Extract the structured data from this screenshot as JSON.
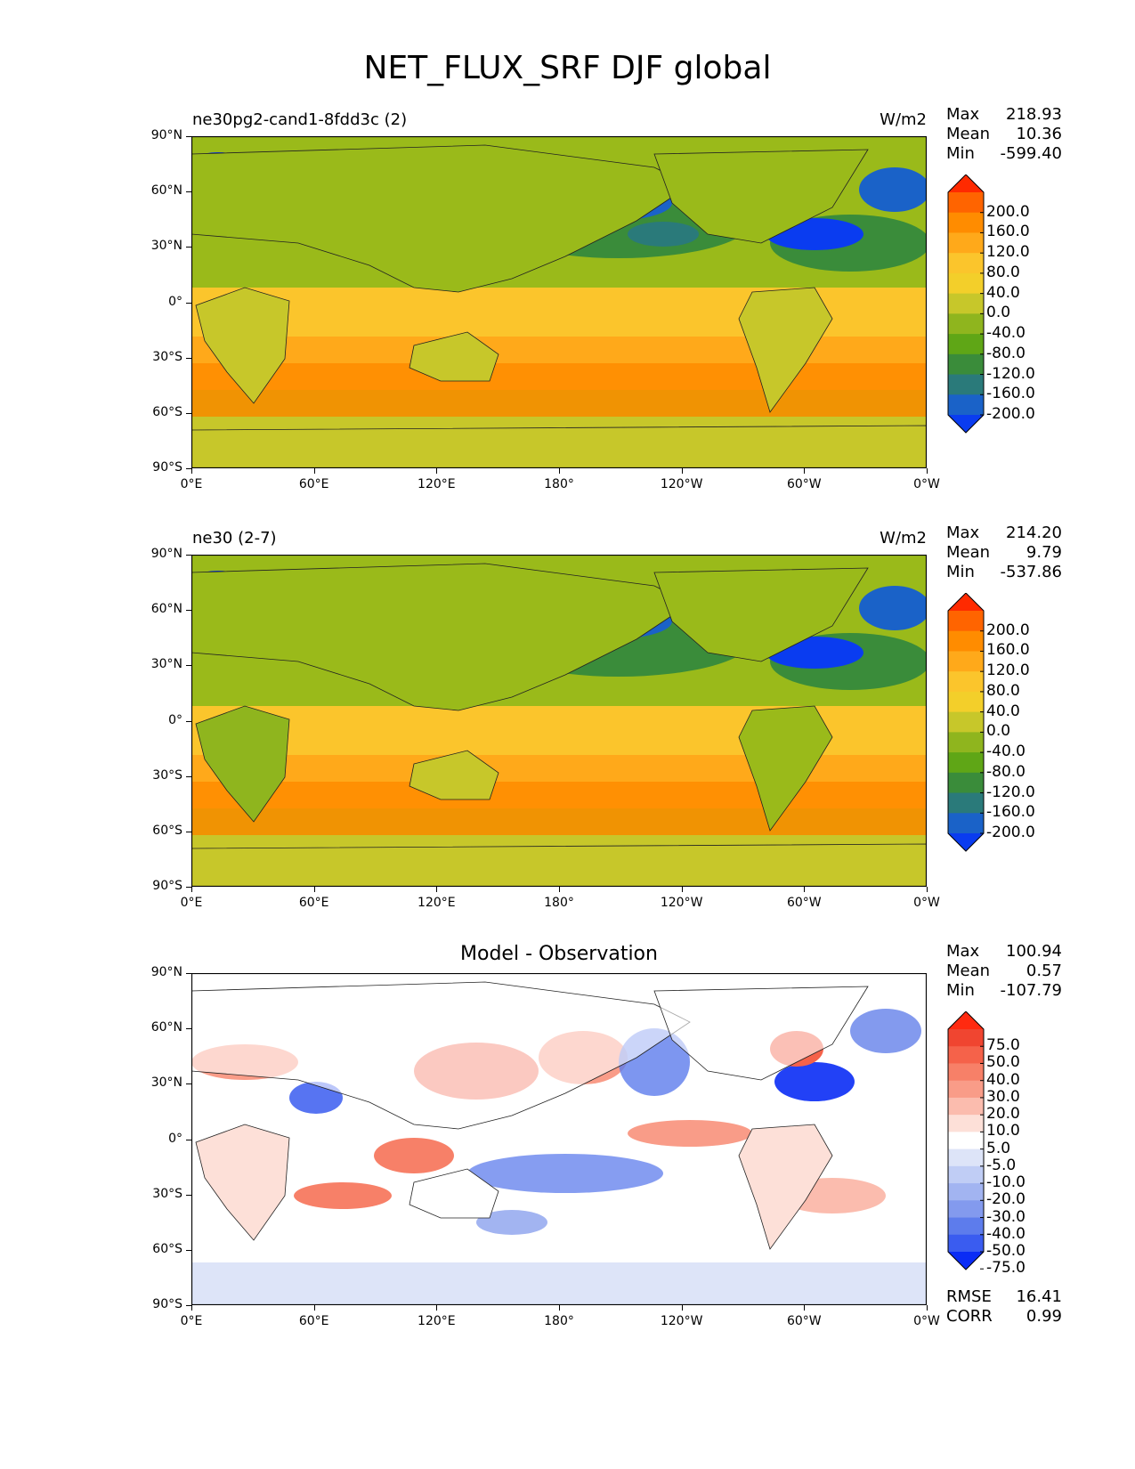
{
  "figure_title": "NET_FLUX_SRF DJF global",
  "chart_data": [
    {
      "type": "heatmap",
      "title": "ne30pg2-cand1-8fdd3c (2)",
      "units": "W/m2",
      "stats": {
        "max_label": "Max",
        "max": "218.93",
        "mean_label": "Mean",
        "mean": "10.36",
        "min_label": "Min",
        "min": "-599.40"
      },
      "x_ticks": [
        "0°E",
        "60°E",
        "120°E",
        "180°",
        "120°W",
        "60°W",
        "0°W"
      ],
      "y_ticks": [
        "90°N",
        "60°N",
        "30°N",
        "0°",
        "30°S",
        "60°S",
        "90°S"
      ],
      "xlim": [
        0,
        360
      ],
      "ylim": [
        -90,
        90
      ],
      "colorbar": {
        "labels": [
          "200.0",
          "160.0",
          "120.0",
          "80.0",
          "40.0",
          "0.0",
          "-40.0",
          "-80.0",
          "-120.0",
          "-160.0",
          "-200.0"
        ],
        "colors": [
          "#ff2a00",
          "#ff6400",
          "#ff8c00",
          "#ffa91a",
          "#fbc52c",
          "#f3cf2a",
          "#c7c72a",
          "#8fb51e",
          "#5fa616",
          "#3a8c3a",
          "#2a7a7a",
          "#1a62c8",
          "#0a3cf0"
        ]
      }
    },
    {
      "type": "heatmap",
      "title": "ne30 (2-7)",
      "units": "W/m2",
      "stats": {
        "max_label": "Max",
        "max": "214.20",
        "mean_label": "Mean",
        "mean": "9.79",
        "min_label": "Min",
        "min": "-537.86"
      },
      "x_ticks": [
        "0°E",
        "60°E",
        "120°E",
        "180°",
        "120°W",
        "60°W",
        "0°W"
      ],
      "y_ticks": [
        "90°N",
        "60°N",
        "30°N",
        "0°",
        "30°S",
        "60°S",
        "90°S"
      ],
      "xlim": [
        0,
        360
      ],
      "ylim": [
        -90,
        90
      ],
      "colorbar": {
        "labels": [
          "200.0",
          "160.0",
          "120.0",
          "80.0",
          "40.0",
          "0.0",
          "-40.0",
          "-80.0",
          "-120.0",
          "-160.0",
          "-200.0"
        ],
        "colors": [
          "#ff2a00",
          "#ff6400",
          "#ff8c00",
          "#ffa91a",
          "#fbc52c",
          "#f3cf2a",
          "#c7c72a",
          "#8fb51e",
          "#5fa616",
          "#3a8c3a",
          "#2a7a7a",
          "#1a62c8",
          "#0a3cf0"
        ]
      }
    },
    {
      "type": "heatmap",
      "title": "Model - Observation",
      "units": "",
      "stats": {
        "max_label": "Max",
        "max": "100.94",
        "mean_label": "Mean",
        "mean": "0.57",
        "min_label": "Min",
        "min": "-107.79"
      },
      "x_ticks": [
        "0°E",
        "60°E",
        "120°E",
        "180°",
        "120°W",
        "60°W",
        "0°W"
      ],
      "y_ticks": [
        "90°N",
        "60°N",
        "30°N",
        "0°",
        "30°S",
        "60°S",
        "90°S"
      ],
      "xlim": [
        0,
        360
      ],
      "ylim": [
        -90,
        90
      ],
      "colorbar": {
        "labels": [
          "75.0",
          "50.0",
          "40.0",
          "30.0",
          "20.0",
          "10.0",
          "5.0",
          "-5.0",
          "-10.0",
          "-20.0",
          "-30.0",
          "-40.0",
          "-50.0",
          "-75.0"
        ],
        "colors": [
          "#ff2a10",
          "#f04530",
          "#f5624a",
          "#f78068",
          "#f99c88",
          "#fbbcae",
          "#fde0d8",
          "#ffffff",
          "#dde4f8",
          "#c0cdf5",
          "#a2b4f1",
          "#839aee",
          "#5d7cec",
          "#3a5cf0",
          "#0a2cf5"
        ]
      },
      "metrics": {
        "rmse_label": "RMSE",
        "rmse": "16.41",
        "corr_label": "CORR",
        "corr": "0.99"
      }
    }
  ]
}
